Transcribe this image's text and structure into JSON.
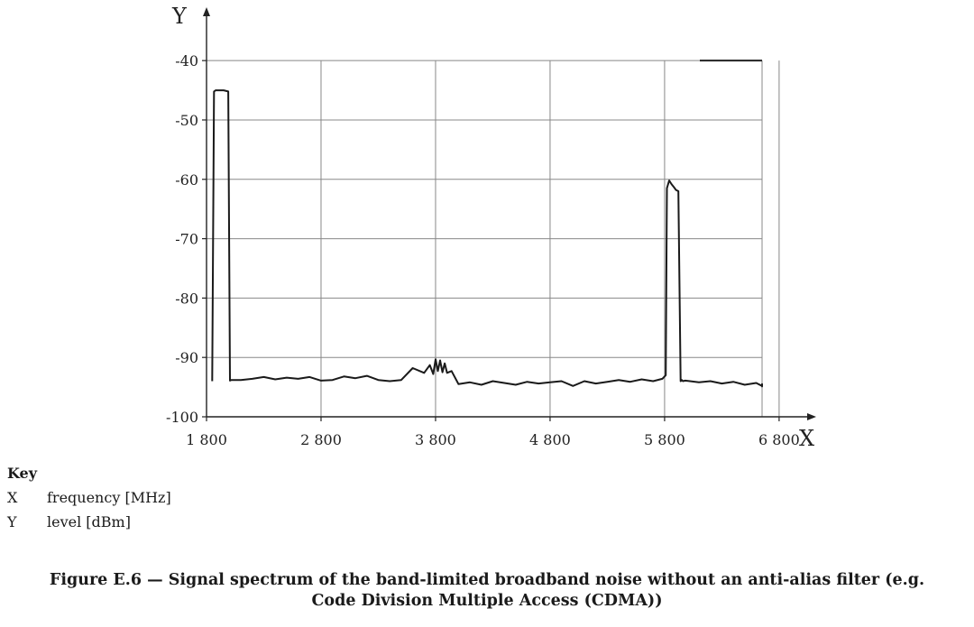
{
  "key": {
    "title": "Key",
    "items": [
      {
        "symbol": "X",
        "description": "frequency [MHz]"
      },
      {
        "symbol": "Y",
        "description": "level [dBm]"
      }
    ]
  },
  "caption": "Figure E.6 — Signal spectrum of the band-limited broadband noise without an anti-alias filter (e.g.\nCode Division Multiple Access (CDMA))",
  "chart_data": {
    "type": "line",
    "x_axis_letter": "X",
    "y_axis_letter": "Y",
    "xlim": [
      1800,
      7100
    ],
    "ylim": [
      -100,
      -38
    ],
    "x_ticks": [
      1800,
      2800,
      3800,
      4800,
      5800,
      6800
    ],
    "x_tick_labels": [
      "1 800",
      "2 800",
      "3 800",
      "4 800",
      "5 800",
      "6 800"
    ],
    "y_ticks": [
      -40,
      -50,
      -60,
      -70,
      -80,
      -90,
      -100
    ],
    "y_tick_labels": [
      "-40",
      "-50",
      "-60",
      "-70",
      "-80",
      "-90",
      "-100"
    ],
    "grid": true,
    "series": [
      {
        "x": [
          1850,
          1865,
          1880,
          1950,
          1990,
          2005,
          2015,
          2100,
          2200,
          2300,
          2400,
          2500,
          2600,
          2700,
          2800,
          2900,
          3000,
          3100,
          3200,
          3300,
          3400,
          3500,
          3600,
          3700,
          3750,
          3780,
          3800,
          3820,
          3840,
          3860,
          3880,
          3900,
          3940,
          4000,
          4100,
          4200,
          4300,
          4400,
          4500,
          4600,
          4700,
          4800,
          4900,
          5000,
          5100,
          5200,
          5300,
          5400,
          5500,
          5600,
          5700,
          5780,
          5810,
          5820,
          5840,
          5860,
          5880,
          5900,
          5920,
          5940,
          5950,
          5960,
          5980,
          6100,
          6200,
          6300,
          6400,
          6500,
          6600,
          6700,
          6800,
          6900,
          7000,
          7100
        ],
        "y": [
          -94.0,
          -45.2,
          -45.0,
          -45.0,
          -45.2,
          -93.9,
          -93.8,
          -93.8,
          -93.6,
          -93.3,
          -93.7,
          -93.4,
          -93.6,
          -93.3,
          -93.9,
          -93.8,
          -93.2,
          -93.5,
          -93.1,
          -93.8,
          -94.0,
          -93.8,
          -91.8,
          -92.6,
          -91.3,
          -92.8,
          -90.3,
          -92.3,
          -90.5,
          -92.5,
          -91.0,
          -92.6,
          -92.3,
          -94.5,
          -94.2,
          -94.6,
          -94.0,
          -94.3,
          -94.6,
          -94.1,
          -94.4,
          -94.2,
          -94.0,
          -94.8,
          -94.0,
          -94.4,
          -94.1,
          -93.8,
          -94.1,
          -93.7,
          -94.0,
          -93.6,
          -93.0,
          -61.5,
          -60.2,
          -60.8,
          -61.3,
          -61.8,
          -62.0,
          -94.0,
          -93.8,
          -94.0,
          -93.9,
          -94.2,
          -94.0,
          -94.4,
          -94.1,
          -94.6,
          -94.3,
          -94.8,
          -94.5,
          -94.9,
          -94.6,
          -94.8
        ]
      }
    ]
  }
}
